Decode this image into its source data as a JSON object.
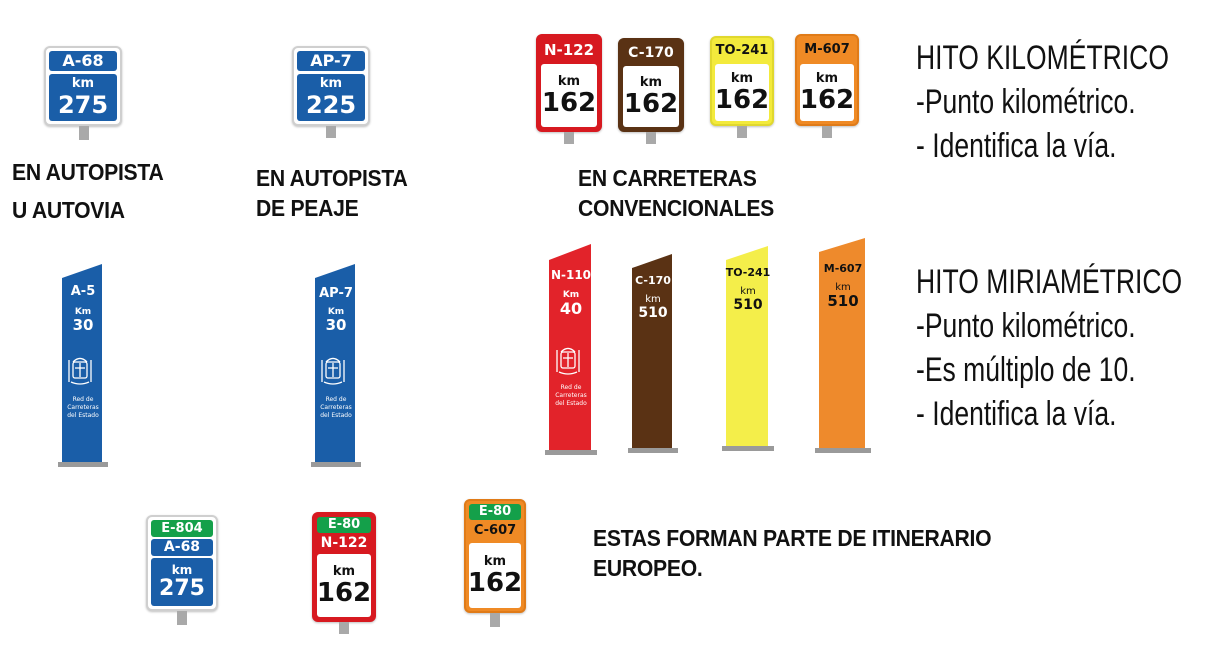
{
  "km_signs": {
    "autopista": {
      "road": "A-68",
      "km_label": "km",
      "km": "275",
      "color": "#1a5ea8"
    },
    "peaje": {
      "road": "AP-7",
      "km_label": "km",
      "km": "225",
      "color": "#1a5ea8"
    },
    "convencionales": [
      {
        "road": "N-122",
        "km_label": "km",
        "km": "162",
        "color": "#d71920"
      },
      {
        "road": "C-170",
        "km_label": "km",
        "km": "162",
        "color": "#5a3214"
      },
      {
        "road": "TO-241",
        "km_label": "km",
        "km": "162",
        "color": "#f3ea3c"
      },
      {
        "road": "M-607",
        "km_label": "km",
        "km": "162",
        "color": "#ef8a25"
      }
    ]
  },
  "captions": {
    "autopista_line1": "EN AUTOPISTA",
    "autopista_line2": "U AUTOVIA",
    "peaje_line1": "EN AUTOPISTA",
    "peaje_line2": "DE PEAJE",
    "convencionales_line1": "EN CARRETERAS",
    "convencionales_line2": "CONVENCIONALES",
    "europeo_line1": "ESTAS FORMAN PARTE DE ITINERARIO",
    "europeo_line2": "EUROPEO."
  },
  "hito_kilometrico": {
    "title": "HITO KILOMÉTRICO",
    "lines": [
      "-Punto kilométrico.",
      "- Identifica la vía."
    ]
  },
  "hito_miriametrico": {
    "title": "HITO MIRIAMÉTRICO",
    "lines": [
      "-Punto kilométrico.",
      "-Es múltiplo de 10.",
      "- Identifica la vía."
    ]
  },
  "monoliths": [
    {
      "road": "A-5",
      "km_label": "Km",
      "km": "30",
      "footer": [
        "Red de",
        "Carreteras",
        "del Estado"
      ],
      "color": "#1a5ea8"
    },
    {
      "road": "AP-7",
      "km_label": "Km",
      "km": "30",
      "footer": [
        "Red de",
        "Carreteras",
        "del Estado"
      ],
      "color": "#1a5ea8"
    },
    {
      "road": "N-110",
      "km_label": "Km",
      "km": "40",
      "footer": [
        "Red de",
        "Carreteras",
        "del Estado"
      ],
      "color": "#e2232a"
    },
    {
      "road": "C-170",
      "km_label": "km",
      "km": "510",
      "color": "#5a3214"
    },
    {
      "road": "TO-241",
      "km_label": "km",
      "km": "510",
      "color": "#f4ee4a"
    },
    {
      "road": "M-607",
      "km_label": "km",
      "km": "510",
      "color": "#ee8a2c"
    }
  ],
  "european_signs": [
    {
      "euro": "E-804",
      "road": "A-68",
      "km_label": "km",
      "km": "275",
      "color": "#1a5ea8"
    },
    {
      "euro": "E-80",
      "road": "N-122",
      "km_label": "km",
      "km": "162",
      "color": "#d71920"
    },
    {
      "euro": "E-80",
      "road": "C-607",
      "km_label": "km",
      "km": "162",
      "color": "#ef8a25"
    }
  ],
  "colors": {
    "euro_green": "#14a04a"
  }
}
